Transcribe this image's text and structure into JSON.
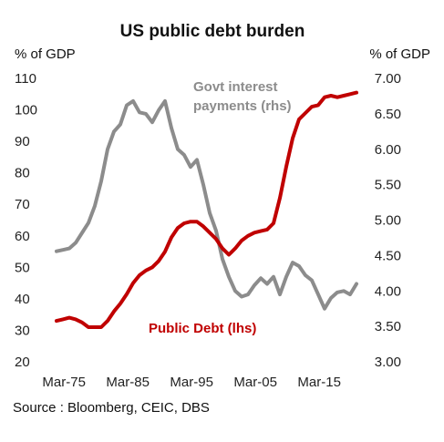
{
  "chart_data": {
    "type": "line",
    "title": "US public debt burden",
    "source": "Source : Bloomberg, CEIC, DBS",
    "axes": {
      "left": {
        "unit": "% of GDP",
        "range": [
          20,
          110
        ],
        "ticks": [
          "20",
          "30",
          "40",
          "50",
          "60",
          "70",
          "80",
          "90",
          "100",
          "110"
        ]
      },
      "right": {
        "unit": "% of GDP",
        "range": [
          3.0,
          7.0
        ],
        "ticks": [
          "3.00",
          "3.50",
          "4.00",
          "4.50",
          "5.00",
          "5.50",
          "6.00",
          "6.50",
          "7.00"
        ]
      },
      "x": {
        "range": [
          1974.0,
          2022.0
        ],
        "ticks": [
          {
            "label": "Mar-75",
            "value": 1975.17
          },
          {
            "label": "Mar-85",
            "value": 1985.17
          },
          {
            "label": "Mar-95",
            "value": 1995.17
          },
          {
            "label": "Mar-05",
            "value": 2005.17
          },
          {
            "label": "Mar-15",
            "value": 2015.17
          }
        ]
      }
    },
    "series": [
      {
        "name": "Public Debt (lhs)",
        "axis": "left",
        "color": "#c00000",
        "points": [
          [
            1974.0,
            33
          ],
          [
            1975.0,
            33.5
          ],
          [
            1976.0,
            34
          ],
          [
            1977.0,
            33.5
          ],
          [
            1978.0,
            32.5
          ],
          [
            1979.0,
            31
          ],
          [
            1980.0,
            31
          ],
          [
            1981.0,
            31
          ],
          [
            1982.0,
            33
          ],
          [
            1983.0,
            36
          ],
          [
            1984.0,
            38.5
          ],
          [
            1985.0,
            41.5
          ],
          [
            1986.0,
            45
          ],
          [
            1987.0,
            47.5
          ],
          [
            1988.0,
            49
          ],
          [
            1989.0,
            50
          ],
          [
            1990.0,
            52
          ],
          [
            1991.0,
            55
          ],
          [
            1992.0,
            59.5
          ],
          [
            1993.0,
            62.5
          ],
          [
            1994.0,
            64
          ],
          [
            1995.0,
            64.5
          ],
          [
            1996.0,
            64.5
          ],
          [
            1997.0,
            63
          ],
          [
            1998.0,
            61
          ],
          [
            1999.0,
            59
          ],
          [
            2000.0,
            56
          ],
          [
            2001.0,
            54
          ],
          [
            2002.0,
            56
          ],
          [
            2003.0,
            58.5
          ],
          [
            2004.0,
            60
          ],
          [
            2005.0,
            61
          ],
          [
            2006.0,
            61.5
          ],
          [
            2007.0,
            62
          ],
          [
            2008.0,
            64
          ],
          [
            2009.0,
            72
          ],
          [
            2010.0,
            82
          ],
          [
            2011.0,
            91
          ],
          [
            2012.0,
            97
          ],
          [
            2013.0,
            99
          ],
          [
            2014.0,
            101
          ],
          [
            2015.0,
            101.5
          ],
          [
            2016.0,
            104
          ],
          [
            2017.0,
            104.5
          ],
          [
            2018.0,
            104
          ],
          [
            2019.0,
            104.5
          ],
          [
            2020.0,
            105
          ],
          [
            2021.0,
            105.5
          ]
        ]
      },
      {
        "name": "Govt interest payments (rhs)",
        "axis": "right",
        "color": "#8c8c8c",
        "points": [
          [
            1974.0,
            4.56
          ],
          [
            1975.0,
            4.58
          ],
          [
            1976.0,
            4.6
          ],
          [
            1977.0,
            4.68
          ],
          [
            1978.0,
            4.82
          ],
          [
            1979.0,
            4.96
          ],
          [
            1980.0,
            5.2
          ],
          [
            1981.0,
            5.55
          ],
          [
            1982.0,
            6.0
          ],
          [
            1983.0,
            6.25
          ],
          [
            1984.0,
            6.35
          ],
          [
            1985.0,
            6.62
          ],
          [
            1986.0,
            6.68
          ],
          [
            1987.0,
            6.52
          ],
          [
            1988.0,
            6.5
          ],
          [
            1989.0,
            6.38
          ],
          [
            1990.0,
            6.55
          ],
          [
            1991.0,
            6.68
          ],
          [
            1992.0,
            6.3
          ],
          [
            1993.0,
            6.0
          ],
          [
            1994.0,
            5.92
          ],
          [
            1995.0,
            5.75
          ],
          [
            1996.0,
            5.85
          ],
          [
            1997.0,
            5.5
          ],
          [
            1998.0,
            5.1
          ],
          [
            1999.0,
            4.85
          ],
          [
            2000.0,
            4.45
          ],
          [
            2001.0,
            4.2
          ],
          [
            2002.0,
            4.0
          ],
          [
            2003.0,
            3.92
          ],
          [
            2004.0,
            3.95
          ],
          [
            2005.0,
            4.08
          ],
          [
            2006.0,
            4.18
          ],
          [
            2007.0,
            4.1
          ],
          [
            2008.0,
            4.2
          ],
          [
            2009.0,
            3.95
          ],
          [
            2010.0,
            4.2
          ],
          [
            2011.0,
            4.4
          ],
          [
            2012.0,
            4.35
          ],
          [
            2013.0,
            4.22
          ],
          [
            2014.0,
            4.15
          ],
          [
            2015.0,
            3.95
          ],
          [
            2016.0,
            3.75
          ],
          [
            2017.0,
            3.9
          ],
          [
            2018.0,
            3.98
          ],
          [
            2019.0,
            4.0
          ],
          [
            2020.0,
            3.95
          ],
          [
            2021.0,
            4.1
          ]
        ]
      }
    ],
    "labels": {
      "interest_line1": "Govt interest",
      "interest_line2": "payments (rhs)",
      "debt": "Public Debt (lhs)"
    },
    "grid": false,
    "legend": "inline labels"
  }
}
